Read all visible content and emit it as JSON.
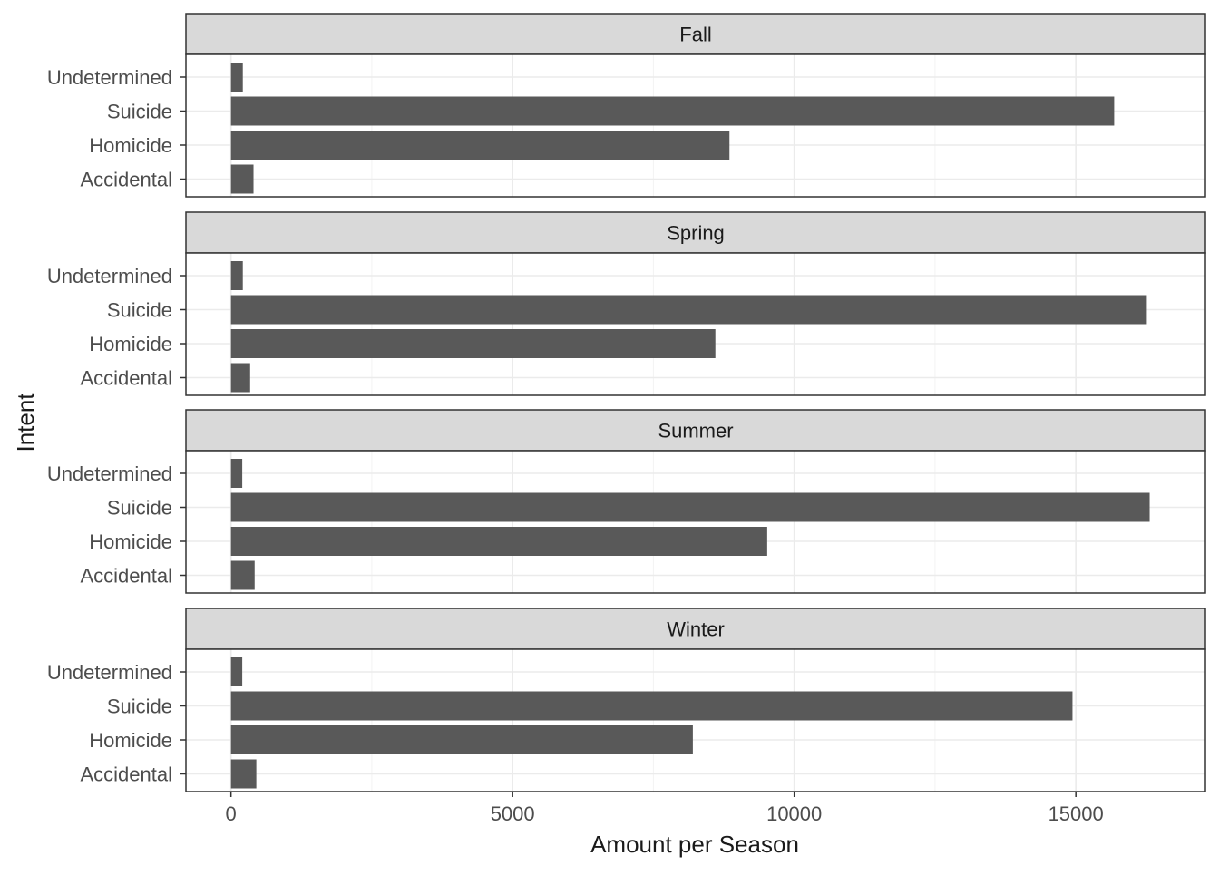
{
  "chart_data": {
    "type": "bar",
    "orientation": "horizontal",
    "facet_by": "season",
    "xlabel": "Amount per Season",
    "ylabel": "Intent",
    "xlim": [
      -800,
      17300
    ],
    "xticks": [
      0,
      5000,
      10000,
      15000
    ],
    "xtick_labels": [
      "0",
      "5000",
      "10000",
      "15000"
    ],
    "grid": true,
    "categories": [
      "Undetermined",
      "Suicide",
      "Homicide",
      "Accidental"
    ],
    "panels": [
      {
        "title": "Fall",
        "values": [
          210,
          15680,
          8850,
          400
        ]
      },
      {
        "title": "Spring",
        "values": [
          210,
          16260,
          8600,
          340
        ]
      },
      {
        "title": "Summer",
        "values": [
          200,
          16310,
          9520,
          420
        ]
      },
      {
        "title": "Winter",
        "values": [
          200,
          14940,
          8200,
          450
        ]
      }
    ],
    "colors": {
      "bar": "#595959",
      "strip_fill": "#d9d9d9",
      "panel_border": "#333333",
      "grid_major": "#ebebeb",
      "grid_minor": "#f3f3f3",
      "text": "#4d4d4d",
      "title_text": "#1a1a1a"
    }
  }
}
